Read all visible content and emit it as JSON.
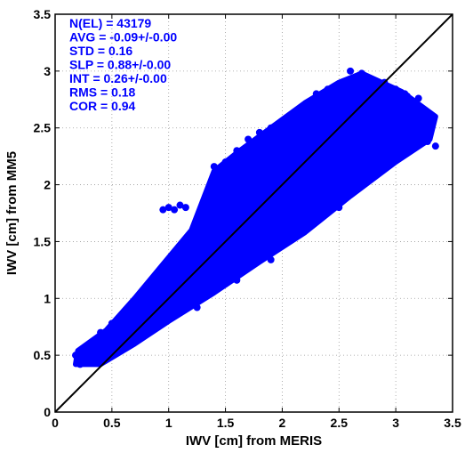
{
  "chart_data": {
    "type": "scatter",
    "title": "",
    "xlabel": "IWV [cm] from MERIS",
    "ylabel": "IWV [cm] from MM5",
    "xlim": [
      0,
      3.5
    ],
    "ylim": [
      0,
      3.5
    ],
    "xticks": [
      0,
      0.5,
      1,
      1.5,
      2,
      2.5,
      3,
      3.5
    ],
    "yticks": [
      0,
      0.5,
      1,
      1.5,
      2,
      2.5,
      3,
      3.5
    ],
    "xtick_labels": [
      "0",
      "0.5",
      "1",
      "1.5",
      "2",
      "2.5",
      "3",
      "3.5"
    ],
    "ytick_labels": [
      "0",
      "0.5",
      "1",
      "1.5",
      "2",
      "2.5",
      "3",
      "3.5"
    ],
    "grid": true,
    "reference_line": {
      "type": "1:1",
      "from": [
        0,
        0
      ],
      "to": [
        3.5,
        3.5
      ],
      "color": "#000000"
    },
    "marker_color": "#0000ff",
    "annotations": [
      "N(EL) = 43179",
      "AVG = -0.09+/-0.00",
      "STD = 0.16",
      "SLP = 0.88+/-0.00",
      "INT = 0.26+/-0.00",
      "RMS = 0.18",
      "COR = 0.94"
    ],
    "annotation_color": "#0000ff",
    "series": [
      {
        "points": [
          [
            0.18,
            0.5
          ],
          [
            0.2,
            0.46
          ],
          [
            0.22,
            0.42
          ],
          [
            0.25,
            0.52
          ],
          [
            0.28,
            0.48
          ],
          [
            0.3,
            0.58
          ],
          [
            0.32,
            0.44
          ],
          [
            0.35,
            0.62
          ],
          [
            0.38,
            0.52
          ],
          [
            0.4,
            0.7
          ],
          [
            0.42,
            0.46
          ],
          [
            0.45,
            0.66
          ],
          [
            0.48,
            0.56
          ],
          [
            0.5,
            0.78
          ],
          [
            0.52,
            0.6
          ],
          [
            0.55,
            0.72
          ],
          [
            0.58,
            0.64
          ],
          [
            0.6,
            0.86
          ],
          [
            0.62,
            0.7
          ],
          [
            0.65,
            0.8
          ],
          [
            0.68,
            0.74
          ],
          [
            0.7,
            0.92
          ],
          [
            0.72,
            0.78
          ],
          [
            0.75,
            0.98
          ],
          [
            0.78,
            0.82
          ],
          [
            0.8,
            1.04
          ],
          [
            0.82,
            0.86
          ],
          [
            0.85,
            1.0
          ],
          [
            0.88,
            0.9
          ],
          [
            0.9,
            1.12
          ],
          [
            0.92,
            0.94
          ],
          [
            0.95,
            1.2
          ],
          [
            0.98,
            1.0
          ],
          [
            1.0,
            1.24
          ],
          [
            1.02,
            1.04
          ],
          [
            1.05,
            1.3
          ],
          [
            1.08,
            1.1
          ],
          [
            1.1,
            1.38
          ],
          [
            1.12,
            1.14
          ],
          [
            1.15,
            1.46
          ],
          [
            1.18,
            1.2
          ],
          [
            1.2,
            1.52
          ],
          [
            1.22,
            1.26
          ],
          [
            1.25,
            1.6
          ],
          [
            1.28,
            1.3
          ],
          [
            1.3,
            1.66
          ],
          [
            1.32,
            1.34
          ],
          [
            1.35,
            1.74
          ],
          [
            1.38,
            1.4
          ],
          [
            1.4,
            1.78
          ],
          [
            1.42,
            1.46
          ],
          [
            1.45,
            1.82
          ],
          [
            1.48,
            1.5
          ],
          [
            1.5,
            1.9
          ],
          [
            1.52,
            1.54
          ],
          [
            1.55,
            1.94
          ],
          [
            1.58,
            1.58
          ],
          [
            1.6,
            2.0
          ],
          [
            1.62,
            1.62
          ],
          [
            1.65,
            2.06
          ],
          [
            1.68,
            1.66
          ],
          [
            1.7,
            2.1
          ],
          [
            1.72,
            1.7
          ],
          [
            1.75,
            2.14
          ],
          [
            1.78,
            1.76
          ],
          [
            1.8,
            2.2
          ],
          [
            1.82,
            1.8
          ],
          [
            1.85,
            2.24
          ],
          [
            1.88,
            1.84
          ],
          [
            1.9,
            2.3
          ],
          [
            1.92,
            1.88
          ],
          [
            1.95,
            2.34
          ],
          [
            1.98,
            1.92
          ],
          [
            2.0,
            2.4
          ],
          [
            2.02,
            1.96
          ],
          [
            2.05,
            2.44
          ],
          [
            2.08,
            2.0
          ],
          [
            2.1,
            2.48
          ],
          [
            2.12,
            2.04
          ],
          [
            2.15,
            2.52
          ],
          [
            2.18,
            2.08
          ],
          [
            2.2,
            2.56
          ],
          [
            2.22,
            2.12
          ],
          [
            2.25,
            2.6
          ],
          [
            2.28,
            2.16
          ],
          [
            2.3,
            2.66
          ],
          [
            2.32,
            2.2
          ],
          [
            2.35,
            2.7
          ],
          [
            2.38,
            2.24
          ],
          [
            2.4,
            2.74
          ],
          [
            2.42,
            2.28
          ],
          [
            2.45,
            2.78
          ],
          [
            2.48,
            2.32
          ],
          [
            2.5,
            2.82
          ],
          [
            2.52,
            2.36
          ],
          [
            2.55,
            2.86
          ],
          [
            2.58,
            2.4
          ],
          [
            2.6,
            2.9
          ],
          [
            2.62,
            2.44
          ],
          [
            2.65,
            2.94
          ],
          [
            2.68,
            2.48
          ],
          [
            2.7,
            2.96
          ],
          [
            2.72,
            2.52
          ],
          [
            2.75,
            2.92
          ],
          [
            2.78,
            2.56
          ],
          [
            2.8,
            2.88
          ],
          [
            2.82,
            2.6
          ],
          [
            2.85,
            2.84
          ],
          [
            2.88,
            2.64
          ],
          [
            2.9,
            2.9
          ],
          [
            2.92,
            2.68
          ],
          [
            2.95,
            2.8
          ],
          [
            2.98,
            2.72
          ],
          [
            3.0,
            2.84
          ],
          [
            3.02,
            2.76
          ],
          [
            3.05,
            2.74
          ],
          [
            3.08,
            2.8
          ],
          [
            3.1,
            2.78
          ],
          [
            3.15,
            2.7
          ],
          [
            3.2,
            2.76
          ],
          [
            3.25,
            2.6
          ],
          [
            3.3,
            2.46
          ],
          [
            3.35,
            2.34
          ],
          [
            3.28,
            2.38
          ],
          [
            3.22,
            2.5
          ],
          [
            0.95,
            1.78
          ],
          [
            1.0,
            1.8
          ],
          [
            1.05,
            1.78
          ],
          [
            1.1,
            1.82
          ],
          [
            1.15,
            1.8
          ],
          [
            1.4,
            2.16
          ],
          [
            1.5,
            2.2
          ],
          [
            1.6,
            2.3
          ],
          [
            1.7,
            2.4
          ],
          [
            1.8,
            2.46
          ],
          [
            1.9,
            2.5
          ],
          [
            2.0,
            2.56
          ],
          [
            2.1,
            2.62
          ],
          [
            2.2,
            2.7
          ],
          [
            2.3,
            2.8
          ],
          [
            2.4,
            2.84
          ],
          [
            2.5,
            2.88
          ],
          [
            2.6,
            3.0
          ],
          [
            2.7,
            2.98
          ],
          [
            1.0,
            0.88
          ],
          [
            1.1,
            0.92
          ],
          [
            1.2,
            1.0
          ],
          [
            1.3,
            1.06
          ],
          [
            1.4,
            1.14
          ],
          [
            1.5,
            1.2
          ],
          [
            1.6,
            1.3
          ],
          [
            1.7,
            1.36
          ],
          [
            1.8,
            1.42
          ],
          [
            1.9,
            1.5
          ],
          [
            2.0,
            1.56
          ],
          [
            2.1,
            1.64
          ],
          [
            2.2,
            1.7
          ],
          [
            2.3,
            1.78
          ],
          [
            2.4,
            1.86
          ],
          [
            2.5,
            1.92
          ],
          [
            2.6,
            2.0
          ],
          [
            2.7,
            2.08
          ],
          [
            2.8,
            2.16
          ],
          [
            2.9,
            2.24
          ],
          [
            3.0,
            2.32
          ],
          [
            2.2,
            1.6
          ],
          [
            2.5,
            1.8
          ],
          [
            2.8,
            2.1
          ],
          [
            1.25,
            0.92
          ],
          [
            1.6,
            1.16
          ],
          [
            1.9,
            1.34
          ]
        ]
      }
    ]
  }
}
